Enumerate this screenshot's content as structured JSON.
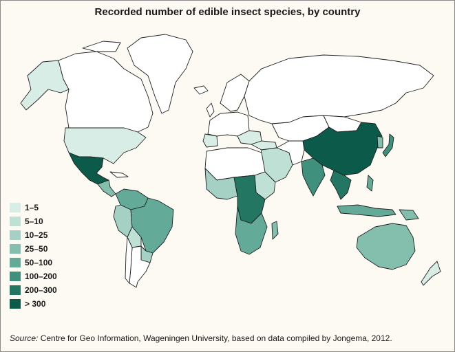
{
  "title": "Recorded number of edible insect species, by country",
  "source": {
    "label": "Source:",
    "text": " Centre for Geo Information, Wageningen University, based on data compiled by Jongema, 2012."
  },
  "legend": [
    {
      "label": "1–5",
      "color": "#d7ede6"
    },
    {
      "label": "5–10",
      "color": "#bfe0d5"
    },
    {
      "label": "10–25",
      "color": "#a4d1c3"
    },
    {
      "label": "25–50",
      "color": "#84bfae"
    },
    {
      "label": "50–100",
      "color": "#63ab98"
    },
    {
      "label": "100–200",
      "color": "#3f917d"
    },
    {
      "label": "200–300",
      "color": "#237662"
    },
    {
      "label": "> 300",
      "color": "#0c5a49"
    }
  ],
  "colors": {
    "no_data": "#ffffff",
    "outline": "#1f1f1f",
    "frame_background": "#fcfaf3"
  }
}
